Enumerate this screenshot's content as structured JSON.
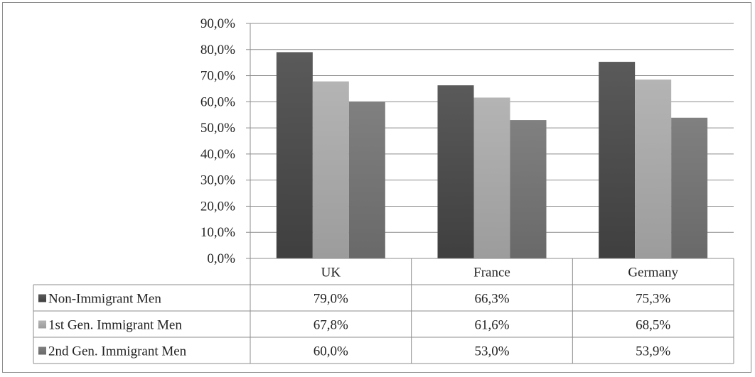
{
  "chart_data": {
    "type": "bar",
    "categories": [
      "UK",
      "France",
      "Germany"
    ],
    "series": [
      {
        "name": "Non-Immigrant Men",
        "values": [
          79.0,
          66.3,
          75.3
        ],
        "labels": [
          "79,0%",
          "66,3%",
          "75,3%"
        ],
        "color": "#4d4d4d"
      },
      {
        "name": "1st Gen. Immigrant Men",
        "values": [
          67.8,
          61.6,
          68.5
        ],
        "labels": [
          "67,8%",
          "61,6%",
          "68,5%"
        ],
        "color": "#a9a9a9"
      },
      {
        "name": "2nd Gen. Immigrant Men",
        "values": [
          60.0,
          53.0,
          53.9
        ],
        "labels": [
          "60,0%",
          "53,0%",
          "53,9%"
        ],
        "color": "#757575"
      }
    ],
    "y_ticks": [
      "0,0%",
      "10,0%",
      "20,0%",
      "30,0%",
      "40,0%",
      "50,0%",
      "60,0%",
      "70,0%",
      "80,0%",
      "90,0%"
    ],
    "ylim": [
      0,
      90
    ],
    "grid": true,
    "legend": "data-table"
  }
}
